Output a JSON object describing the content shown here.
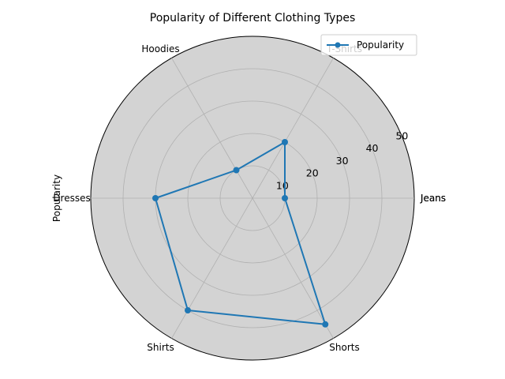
{
  "chart_data": {
    "type": "radar",
    "title": "Popularity of Different Clothing Types",
    "ylabel": "Popularity",
    "categories": [
      "Jeans",
      "T-Shirts",
      "Hoodies",
      "Dresses",
      "Shirts",
      "Shorts"
    ],
    "series": [
      {
        "name": "Popularity",
        "values": [
          10,
          20,
          10,
          30,
          40,
          45
        ]
      }
    ],
    "rlim": [
      0,
      50
    ],
    "rticks": [
      10,
      20,
      30,
      40,
      50
    ],
    "closing_label": "Jeans",
    "grid": true,
    "legend": "top-right",
    "colors": {
      "line": "#1f77b4",
      "axes_bg": "#d3d3d3",
      "grid": "#b0b0b0"
    }
  }
}
